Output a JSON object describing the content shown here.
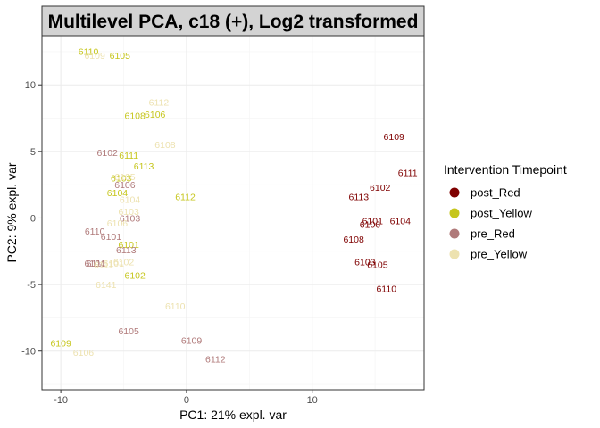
{
  "chart_data": {
    "type": "scatter",
    "title": "Multilevel PCA, c18 (+), Log2 transformed",
    "xlabel": "PC1: 21% expl. var",
    "ylabel": "PC2: 9% expl. var",
    "xlim": [
      -11.5,
      18.9
    ],
    "ylim": [
      -12.9,
      13.7
    ],
    "xticks": [
      -10,
      0,
      10
    ],
    "yticks": [
      -10,
      -5,
      0,
      5,
      10
    ],
    "grid": true,
    "legend": {
      "title": "Intervention Timepoint",
      "position": "right"
    },
    "series": [
      {
        "name": "post_Red",
        "color": "#7f0000",
        "points": [
          {
            "label": "6109",
            "x": 16.5,
            "y": 6.1
          },
          {
            "label": "6111",
            "x": 17.6,
            "y": 3.4
          },
          {
            "label": "6102",
            "x": 15.4,
            "y": 2.3
          },
          {
            "label": "6113",
            "x": 13.7,
            "y": 1.6
          },
          {
            "label": "6101",
            "x": 14.8,
            "y": -0.2
          },
          {
            "label": "6104",
            "x": 17.0,
            "y": -0.2
          },
          {
            "label": "6106",
            "x": 14.6,
            "y": -0.5
          },
          {
            "label": "6108",
            "x": 13.3,
            "y": -1.6
          },
          {
            "label": "6103",
            "x": 14.2,
            "y": -3.3
          },
          {
            "label": "6105",
            "x": 15.2,
            "y": -3.5
          },
          {
            "label": "6110",
            "x": 15.9,
            "y": -5.3
          }
        ]
      },
      {
        "name": "post_Yellow",
        "color": "#c6c61c",
        "points": [
          {
            "label": "6110",
            "x": -7.8,
            "y": 12.5
          },
          {
            "label": "6105",
            "x": -5.3,
            "y": 12.2
          },
          {
            "label": "6108",
            "x": -4.1,
            "y": 7.7
          },
          {
            "label": "6106",
            "x": -2.5,
            "y": 7.8
          },
          {
            "label": "6111",
            "x": -4.6,
            "y": 4.7
          },
          {
            "label": "6113",
            "x": -3.4,
            "y": 3.9
          },
          {
            "label": "6103",
            "x": -5.2,
            "y": 3.0
          },
          {
            "label": "6104",
            "x": -5.5,
            "y": 1.9
          },
          {
            "label": "6112",
            "x": -0.1,
            "y": 1.6
          },
          {
            "label": "6101",
            "x": -4.6,
            "y": -2.0
          },
          {
            "label": "6102",
            "x": -4.1,
            "y": -4.3
          },
          {
            "label": "6109",
            "x": -10.0,
            "y": -9.4
          }
        ]
      },
      {
        "name": "pre_Red",
        "color": "#b07a7a",
        "points": [
          {
            "label": "6102",
            "x": -6.3,
            "y": 4.9
          },
          {
            "label": "6106",
            "x": -4.9,
            "y": 2.5
          },
          {
            "label": "6103",
            "x": -4.5,
            "y": 0.0
          },
          {
            "label": "6110",
            "x": -7.3,
            "y": -1.0
          },
          {
            "label": "6101",
            "x": -6.0,
            "y": -1.4
          },
          {
            "label": "6113",
            "x": -4.8,
            "y": -2.4
          },
          {
            "label": "6104",
            "x": -7.3,
            "y": -3.4
          },
          {
            "label": "6111",
            "x": -7.2,
            "y": -3.4
          },
          {
            "label": "6105",
            "x": -4.6,
            "y": -8.5
          },
          {
            "label": "6109",
            "x": 0.4,
            "y": -9.2
          },
          {
            "label": "6112",
            "x": 2.3,
            "y": -10.6
          }
        ]
      },
      {
        "name": "pre_Yellow",
        "color": "#ede2b0",
        "points": [
          {
            "label": "6109",
            "x": -7.3,
            "y": 12.2
          },
          {
            "label": "6112",
            "x": -2.2,
            "y": 8.7
          },
          {
            "label": "6108",
            "x": -1.7,
            "y": 5.5
          },
          {
            "label": "6105",
            "x": -4.9,
            "y": 3.1
          },
          {
            "label": "6104",
            "x": -4.5,
            "y": 1.4
          },
          {
            "label": "6103",
            "x": -4.6,
            "y": 0.5
          },
          {
            "label": "6106",
            "x": -5.5,
            "y": -0.4
          },
          {
            "label": "6111",
            "x": -6.6,
            "y": -3.5
          },
          {
            "label": "6102",
            "x": -5.0,
            "y": -3.3
          },
          {
            "label": "6101",
            "x": -5.8,
            "y": -3.4
          },
          {
            "label": "6141",
            "x": -6.4,
            "y": -5.0
          },
          {
            "label": "6110",
            "x": -0.9,
            "y": -6.6
          },
          {
            "label": "6106",
            "x": -8.2,
            "y": -10.1
          }
        ]
      }
    ]
  }
}
